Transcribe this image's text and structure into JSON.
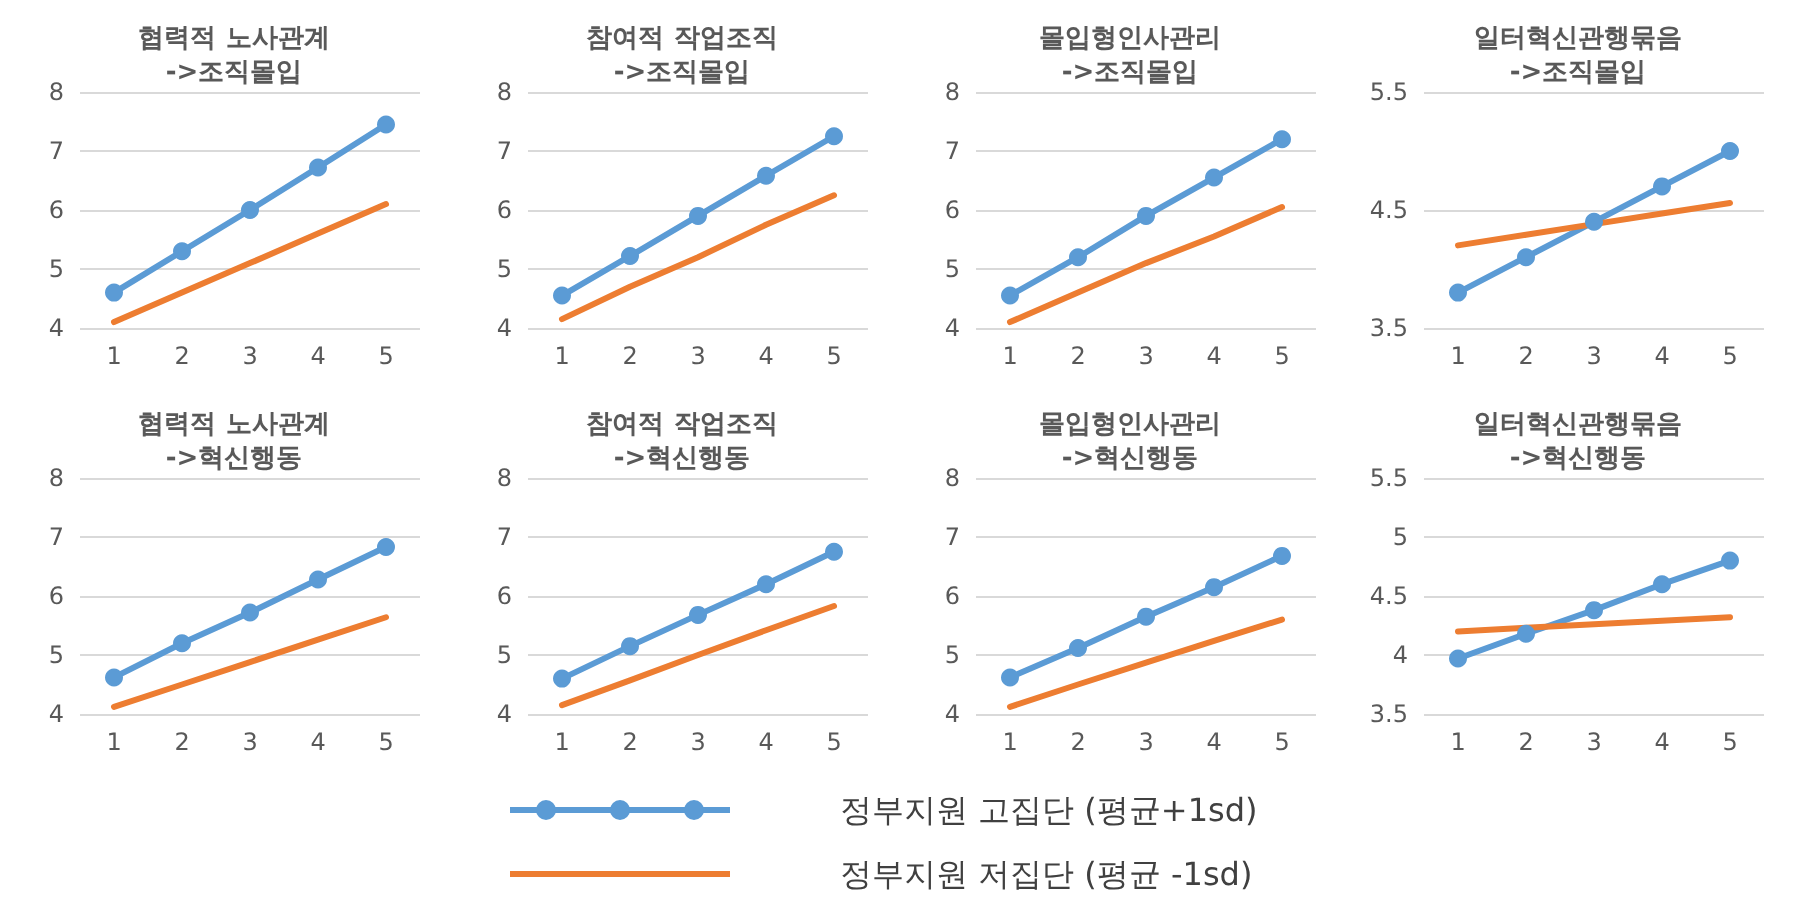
{
  "chart_data": [
    {
      "type": "line",
      "title": "협력적 노사관계\n->조직몰입",
      "categories": [
        "1",
        "2",
        "3",
        "4",
        "5"
      ],
      "ylim": [
        4,
        8
      ],
      "yticks": [
        4,
        5,
        6,
        7,
        8
      ],
      "grid": "y",
      "legend": "bottom",
      "series": [
        {
          "name": "정부지원 고집단 (평균+1sd)",
          "color": "#5b9bd5",
          "marker": "circle",
          "values": [
            4.6,
            5.3,
            6.0,
            6.72,
            7.45
          ]
        },
        {
          "name": "정부지원 저집단 (평균 -1sd)",
          "color": "#ed7d31",
          "marker": "none",
          "values": [
            4.1,
            4.6,
            5.1,
            5.6,
            6.1
          ]
        }
      ]
    },
    {
      "type": "line",
      "title": "참여적 작업조직\n->조직몰입",
      "categories": [
        "1",
        "2",
        "3",
        "4",
        "5"
      ],
      "ylim": [
        4,
        8
      ],
      "yticks": [
        4,
        5,
        6,
        7,
        8
      ],
      "grid": "y",
      "series": [
        {
          "color": "#5b9bd5",
          "marker": "circle",
          "values": [
            4.55,
            5.22,
            5.9,
            6.58,
            7.25
          ]
        },
        {
          "color": "#ed7d31",
          "marker": "none",
          "values": [
            4.15,
            4.7,
            5.2,
            5.75,
            6.25
          ]
        }
      ]
    },
    {
      "type": "line",
      "title": "몰입형인사관리\n->조직몰입",
      "categories": [
        "1",
        "2",
        "3",
        "4",
        "5"
      ],
      "ylim": [
        4,
        8
      ],
      "yticks": [
        4,
        5,
        6,
        7,
        8
      ],
      "grid": "y",
      "series": [
        {
          "color": "#5b9bd5",
          "marker": "circle",
          "values": [
            4.55,
            5.2,
            5.9,
            6.55,
            7.2
          ]
        },
        {
          "color": "#ed7d31",
          "marker": "none",
          "values": [
            4.1,
            4.6,
            5.1,
            5.55,
            6.05
          ]
        }
      ]
    },
    {
      "type": "line",
      "title": "일터혁신관행묶음\n->조직몰입",
      "categories": [
        "1",
        "2",
        "3",
        "4",
        "5"
      ],
      "ylim": [
        3.5,
        5.5
      ],
      "yticks": [
        3.5,
        4.5,
        5.5
      ],
      "grid": "y",
      "series": [
        {
          "color": "#5b9bd5",
          "marker": "circle",
          "values": [
            3.8,
            4.1,
            4.4,
            4.7,
            5.0
          ]
        },
        {
          "color": "#ed7d31",
          "marker": "none",
          "values": [
            4.2,
            4.29,
            4.38,
            4.47,
            4.56
          ]
        }
      ]
    },
    {
      "type": "line",
      "title": "협력적 노사관계\n->혁신행동",
      "categories": [
        "1",
        "2",
        "3",
        "4",
        "5"
      ],
      "ylim": [
        4,
        8
      ],
      "yticks": [
        4,
        5,
        6,
        7,
        8
      ],
      "grid": "y",
      "series": [
        {
          "color": "#5b9bd5",
          "marker": "circle",
          "values": [
            4.62,
            5.2,
            5.72,
            6.28,
            6.83
          ]
        },
        {
          "color": "#ed7d31",
          "marker": "none",
          "values": [
            4.12,
            4.5,
            4.88,
            5.26,
            5.64
          ]
        }
      ]
    },
    {
      "type": "line",
      "title": "참여적 작업조직\n->혁신행동",
      "categories": [
        "1",
        "2",
        "3",
        "4",
        "5"
      ],
      "ylim": [
        4,
        8
      ],
      "yticks": [
        4,
        5,
        6,
        7,
        8
      ],
      "grid": "y",
      "series": [
        {
          "color": "#5b9bd5",
          "marker": "circle",
          "values": [
            4.6,
            5.15,
            5.68,
            6.2,
            6.75
          ]
        },
        {
          "color": "#ed7d31",
          "marker": "none",
          "values": [
            4.15,
            4.57,
            5.0,
            5.42,
            5.83
          ]
        }
      ]
    },
    {
      "type": "line",
      "title": "몰입형인사관리\n->혁신행동",
      "categories": [
        "1",
        "2",
        "3",
        "4",
        "5"
      ],
      "ylim": [
        4,
        8
      ],
      "yticks": [
        4,
        5,
        6,
        7,
        8
      ],
      "grid": "y",
      "series": [
        {
          "color": "#5b9bd5",
          "marker": "circle",
          "values": [
            4.62,
            5.12,
            5.65,
            6.15,
            6.68
          ]
        },
        {
          "color": "#ed7d31",
          "marker": "none",
          "values": [
            4.12,
            4.5,
            4.87,
            5.24,
            5.6
          ]
        }
      ]
    },
    {
      "type": "line",
      "title": "일터혁신관행묶음\n->혁신행동",
      "categories": [
        "1",
        "2",
        "3",
        "4",
        "5"
      ],
      "ylim": [
        3.5,
        5.5
      ],
      "yticks": [
        3.5,
        4,
        4.5,
        5,
        5.5
      ],
      "grid": "y",
      "series": [
        {
          "color": "#5b9bd5",
          "marker": "circle",
          "values": [
            3.97,
            4.18,
            4.38,
            4.6,
            4.8
          ]
        },
        {
          "color": "#ed7d31",
          "marker": "none",
          "values": [
            4.2,
            4.23,
            4.26,
            4.29,
            4.32
          ]
        }
      ]
    }
  ]
}
